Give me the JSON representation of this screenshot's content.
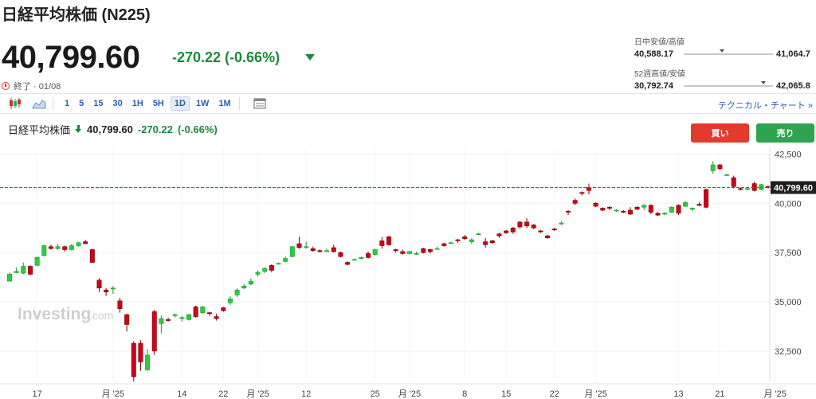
{
  "header": {
    "title": "日経平均株価 (N225)",
    "price": "40,799.60",
    "change": "-270.22 (-0.66%)",
    "status": "終了 · 01/08"
  },
  "ranges": {
    "day": {
      "label": "日中安値/高値",
      "low": "40,588.17",
      "high": "41,064.7",
      "marker": 0.43
    },
    "week52": {
      "label": "52週高値/安値",
      "low": "30,792.74",
      "high": "42,065.8",
      "marker": 0.89
    }
  },
  "toolbar": {
    "intervals": [
      "1",
      "5",
      "15",
      "30",
      "1H",
      "5H",
      "1D",
      "1W",
      "1M"
    ],
    "active": "1D",
    "link": "テクニカル・チャート »"
  },
  "chart_header": {
    "name": "日経平均株価",
    "price": "40,799.60",
    "change": "-270.22",
    "change_pct": "(-0.66%)"
  },
  "buttons": {
    "buy": "買い",
    "sell": "売り"
  },
  "watermark": {
    "text": "Investing",
    "suffix": ".com"
  },
  "colors": {
    "up": "#2ecc40",
    "down": "#d0021b",
    "accent": "#2a5db0",
    "last_line": "#c0392b"
  },
  "chart_data": {
    "type": "candlestick",
    "ylim": [
      31000,
      42800
    ],
    "yticks": [
      32500,
      35000,
      37500,
      40000,
      42500
    ],
    "ytick_labels": [
      "32,500",
      "35,000",
      "37,500",
      "40,000",
      "42,500"
    ],
    "last_price": 40799.6,
    "last_price_label": "40,799.60",
    "xtick_labels": [
      {
        "i": 4,
        "label": "17"
      },
      {
        "i": 15,
        "label": "月 '25"
      },
      {
        "i": 25,
        "label": "14"
      },
      {
        "i": 31,
        "label": "22"
      },
      {
        "i": 36,
        "label": "月 '25"
      },
      {
        "i": 43,
        "label": "12"
      },
      {
        "i": 53,
        "label": "25"
      },
      {
        "i": 58,
        "label": "月 '25"
      },
      {
        "i": 66,
        "label": "8"
      },
      {
        "i": 72,
        "label": "15"
      },
      {
        "i": 79,
        "label": "22"
      },
      {
        "i": 85,
        "label": "月 '25"
      },
      {
        "i": 97,
        "label": "13"
      },
      {
        "i": 103,
        "label": "21"
      },
      {
        "i": 111,
        "label": "月 '25"
      }
    ],
    "candles": [
      [
        36050,
        36500,
        36030,
        36400
      ],
      [
        36480,
        36750,
        36450,
        36550
      ],
      [
        36450,
        37000,
        36400,
        36800
      ],
      [
        36800,
        36850,
        36350,
        36400
      ],
      [
        36850,
        37300,
        36800,
        37250
      ],
      [
        37350,
        37900,
        37300,
        37850
      ],
      [
        37800,
        37900,
        37650,
        37700
      ],
      [
        37700,
        37950,
        37650,
        37800
      ],
      [
        37800,
        37850,
        37550,
        37650
      ],
      [
        37650,
        37950,
        37600,
        37850
      ],
      [
        37850,
        38050,
        37800,
        38000
      ],
      [
        38050,
        38150,
        37950,
        37950
      ],
      [
        37650,
        37700,
        37000,
        37000
      ],
      [
        36100,
        36200,
        35500,
        35700
      ],
      [
        35600,
        35700,
        35300,
        35500
      ],
      [
        35650,
        35800,
        35400,
        35700
      ],
      [
        35050,
        35200,
        34450,
        34650
      ],
      [
        34350,
        34400,
        33500,
        33850
      ],
      [
        32900,
        33000,
        30950,
        31200
      ],
      [
        32900,
        33050,
        31500,
        31950
      ],
      [
        31550,
        32600,
        31500,
        32300
      ],
      [
        34500,
        34600,
        32300,
        32500
      ],
      [
        33900,
        34300,
        33400,
        34150
      ],
      [
        34100,
        34200,
        34000,
        34050
      ],
      [
        34300,
        34400,
        34200,
        34350
      ],
      [
        34150,
        34300,
        34000,
        34200
      ],
      [
        34100,
        34400,
        34050,
        34350
      ],
      [
        34750,
        34800,
        34200,
        34250
      ],
      [
        34450,
        34800,
        34400,
        34750
      ],
      [
        34450,
        34500,
        34300,
        34400
      ],
      [
        34250,
        34400,
        34050,
        34150
      ],
      [
        34700,
        34750,
        34500,
        34550
      ],
      [
        34950,
        35300,
        34850,
        35150
      ],
      [
        35350,
        35700,
        35250,
        35600
      ],
      [
        35700,
        35900,
        35650,
        35800
      ],
      [
        35900,
        36200,
        35850,
        36050
      ],
      [
        36400,
        36600,
        36300,
        36500
      ],
      [
        36550,
        36750,
        36450,
        36700
      ],
      [
        36850,
        36900,
        36500,
        36600
      ],
      [
        36950,
        37000,
        36900,
        36950
      ],
      [
        37050,
        37300,
        37000,
        37200
      ],
      [
        37300,
        37850,
        37250,
        37800
      ],
      [
        37950,
        38300,
        37700,
        37750
      ],
      [
        37800,
        38050,
        37700,
        37800
      ],
      [
        37700,
        37800,
        37550,
        37600
      ],
      [
        37600,
        37650,
        37500,
        37550
      ],
      [
        37550,
        37700,
        37550,
        37600
      ],
      [
        37750,
        37900,
        37500,
        37550
      ],
      [
        37500,
        37550,
        37250,
        37300
      ],
      [
        37000,
        37050,
        36850,
        36900
      ],
      [
        37150,
        37200,
        37100,
        37150
      ],
      [
        37200,
        37300,
        37150,
        37250
      ],
      [
        37450,
        37550,
        37200,
        37250
      ],
      [
        37400,
        37700,
        37350,
        37650
      ],
      [
        38100,
        38300,
        37700,
        37850
      ],
      [
        38300,
        38350,
        37850,
        37900
      ],
      [
        37650,
        37700,
        37500,
        37600
      ],
      [
        37550,
        37650,
        37400,
        37450
      ],
      [
        37450,
        37600,
        37400,
        37550
      ],
      [
        37450,
        37550,
        37400,
        37450
      ],
      [
        37700,
        37750,
        37450,
        37500
      ],
      [
        37650,
        37700,
        37450,
        37550
      ],
      [
        37700,
        37800,
        37650,
        37700
      ],
      [
        37950,
        38000,
        37800,
        37850
      ],
      [
        38000,
        38050,
        37950,
        38000
      ],
      [
        38150,
        38200,
        38000,
        38100
      ],
      [
        38300,
        38400,
        38150,
        38200
      ],
      [
        38050,
        38250,
        37950,
        38150
      ],
      [
        38450,
        38500,
        38400,
        38450
      ],
      [
        38050,
        38250,
        37750,
        37900
      ],
      [
        38100,
        38150,
        37950,
        38000
      ],
      [
        38450,
        38500,
        38250,
        38350
      ],
      [
        38600,
        38650,
        38450,
        38500
      ],
      [
        38750,
        38800,
        38450,
        38550
      ],
      [
        39050,
        39100,
        38700,
        38800
      ],
      [
        39050,
        39250,
        38750,
        38850
      ],
      [
        38900,
        38950,
        38700,
        38750
      ],
      [
        38600,
        38650,
        38500,
        38550
      ],
      [
        38350,
        38400,
        38200,
        38250
      ],
      [
        38700,
        38750,
        38600,
        38650
      ],
      [
        38950,
        39100,
        38900,
        39000
      ],
      [
        39600,
        39650,
        39400,
        39550
      ],
      [
        40150,
        40250,
        39900,
        40000
      ],
      [
        40550,
        40600,
        40400,
        40500
      ],
      [
        40800,
        41000,
        40450,
        40650
      ],
      [
        40000,
        40050,
        39800,
        39850
      ],
      [
        39750,
        39800,
        39600,
        39650
      ],
      [
        39800,
        39850,
        39650,
        39750
      ],
      [
        39650,
        39700,
        39550,
        39650
      ],
      [
        39600,
        39650,
        39500,
        39550
      ],
      [
        39650,
        39800,
        39400,
        39450
      ],
      [
        39800,
        39850,
        39650,
        39700
      ],
      [
        39800,
        39950,
        39650,
        39900
      ],
      [
        39900,
        39950,
        39450,
        39550
      ],
      [
        39500,
        39550,
        39350,
        39400
      ],
      [
        39450,
        39550,
        39400,
        39500
      ],
      [
        39550,
        39850,
        39500,
        39800
      ],
      [
        39900,
        39950,
        39400,
        39500
      ],
      [
        39850,
        40100,
        39800,
        40050
      ],
      [
        39700,
        39800,
        39600,
        39750
      ],
      [
        39950,
        40050,
        39850,
        39900
      ],
      [
        40700,
        40750,
        39750,
        39800
      ],
      [
        41650,
        42150,
        41500,
        41950
      ],
      [
        41950,
        42000,
        41700,
        41750
      ],
      [
        41450,
        41500,
        41400,
        41450
      ],
      [
        41300,
        41400,
        40750,
        40850
      ],
      [
        40750,
        40800,
        40650,
        40700
      ],
      [
        40700,
        40800,
        40650,
        40750
      ],
      [
        41000,
        41100,
        40600,
        40650
      ],
      [
        40700,
        41000,
        40650,
        40950
      ],
      [
        40850,
        40900,
        40750,
        40800
      ]
    ]
  }
}
